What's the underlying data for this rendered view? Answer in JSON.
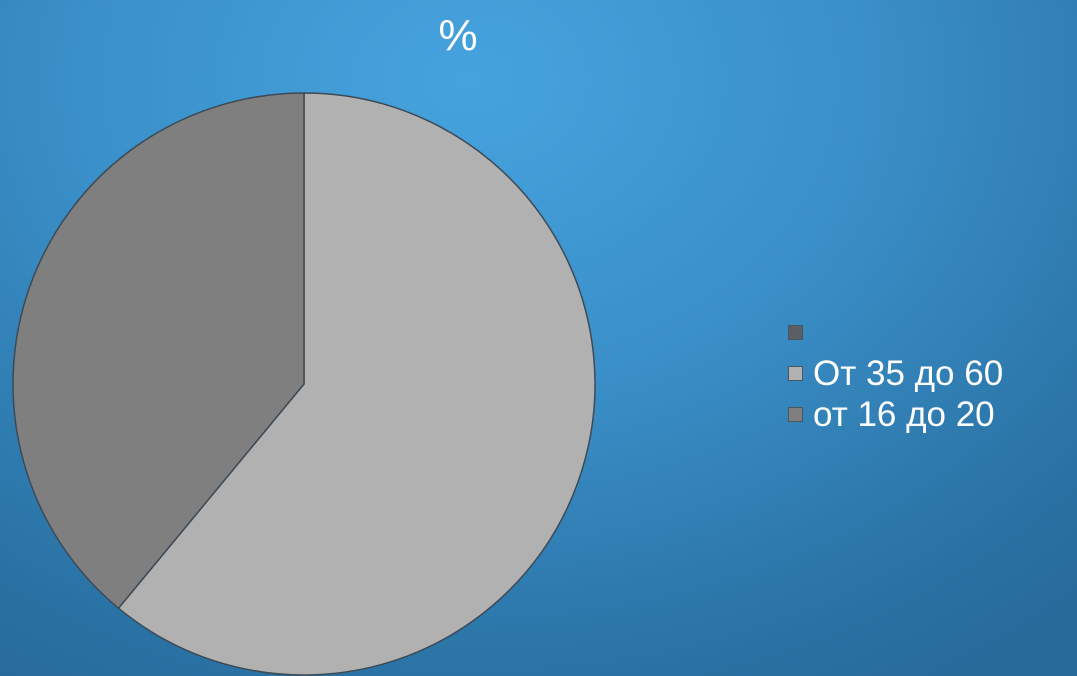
{
  "chart_data": {
    "type": "pie",
    "title": "%",
    "slices": [
      {
        "label": "",
        "value": 0,
        "color": "#5a5f66"
      },
      {
        "label": "От 35 до 60",
        "value": 61,
        "color": "#b1b1b1"
      },
      {
        "label": "от 16 до 20",
        "value": 39,
        "color": "#7f7f7f"
      }
    ],
    "legend_position": "right"
  }
}
